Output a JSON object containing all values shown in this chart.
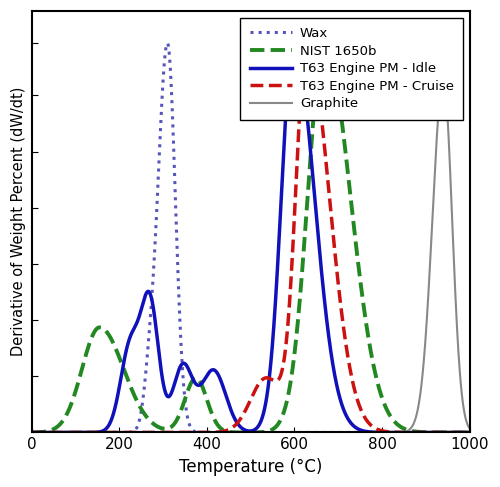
{
  "title": "",
  "xlabel": "Temperature (°C)",
  "ylabel": "Derivative of Weight Percent (dW/dt)",
  "xlim": [
    0,
    1000
  ],
  "background_color": "#ffffff",
  "legend_entries": [
    "Wax",
    "NIST 1650b",
    "T63 Engine PM - Idle",
    "T63 Engine PM - Cruise",
    "Graphite"
  ],
  "line_colors": [
    "#5555bb",
    "#228822",
    "#1111bb",
    "#cc1111",
    "#888888"
  ],
  "line_styles": [
    "dotted",
    "dashed",
    "solid",
    "dashed",
    "solid"
  ],
  "line_widths": [
    2.2,
    2.8,
    2.5,
    2.5,
    1.5
  ],
  "tick_labels": [
    0,
    200,
    400,
    600,
    800,
    1000
  ]
}
